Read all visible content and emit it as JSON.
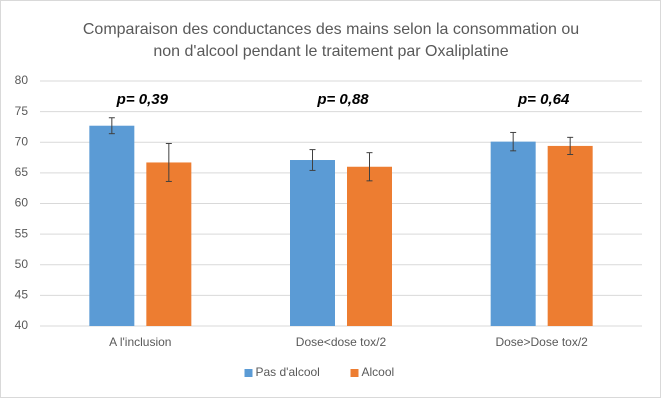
{
  "chart_data": {
    "type": "bar",
    "title": [
      "Comparaison des conductances des mains selon la consommation ou",
      "non d'alcool pendant le traitement par Oxaliplatine"
    ],
    "categories": [
      "A l'inclusion",
      "Dose<dose tox/2",
      "Dose>Dose tox/2"
    ],
    "series": [
      {
        "name": "Pas d'alcool",
        "color": "#5b9bd5",
        "values": [
          72.7,
          67.1,
          70.1
        ],
        "errors": [
          1.3,
          1.7,
          1.5
        ]
      },
      {
        "name": "Alcool",
        "color": "#ed7d31",
        "values": [
          66.7,
          66.0,
          69.4
        ],
        "errors": [
          3.1,
          2.3,
          1.4
        ]
      }
    ],
    "annotations": [
      "p= 0,39",
      "p= 0,88",
      "p= 0,64"
    ],
    "ylim": [
      40,
      80
    ],
    "yticks": [
      40,
      45,
      50,
      55,
      60,
      65,
      70,
      75,
      80
    ],
    "grid": true,
    "legend": "bottom"
  }
}
